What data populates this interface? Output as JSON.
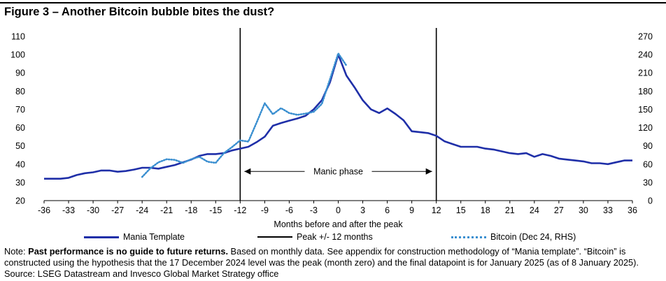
{
  "title": "Figure 3 – Another Bitcoin bubble bites the dust?",
  "chart_data": {
    "type": "line",
    "xlabel": "Months before and after the peak",
    "x_ticks": [
      -36,
      -33,
      -30,
      -27,
      -24,
      -21,
      -18,
      -15,
      -12,
      -9,
      -6,
      -3,
      0,
      3,
      6,
      9,
      12,
      15,
      18,
      21,
      24,
      27,
      30,
      33,
      36
    ],
    "xlim": [
      -36,
      36
    ],
    "ylim_left": [
      20,
      110
    ],
    "yticks_left": [
      20,
      30,
      40,
      50,
      60,
      70,
      80,
      90,
      100,
      110
    ],
    "ylim_right": [
      0,
      270
    ],
    "yticks_right": [
      0,
      30,
      60,
      90,
      120,
      150,
      180,
      210,
      240,
      270
    ],
    "grid": false,
    "series": [
      {
        "name": "Mania Template",
        "axis": "left",
        "color": "#1f2fa8",
        "style": "solid",
        "x": [
          -36,
          -35,
          -34,
          -33,
          -32,
          -31,
          -30,
          -29,
          -28,
          -27,
          -26,
          -25,
          -24,
          -23,
          -22,
          -21,
          -20,
          -19,
          -18,
          -17,
          -16,
          -15,
          -14,
          -13,
          -12,
          -11,
          -10,
          -9,
          -8,
          -7,
          -6,
          -5,
          -4,
          -3,
          -2,
          -1,
          0,
          1,
          2,
          3,
          4,
          5,
          6,
          7,
          8,
          9,
          10,
          11,
          12,
          13,
          14,
          15,
          16,
          17,
          18,
          19,
          20,
          21,
          22,
          23,
          24,
          25,
          26,
          27,
          28,
          29,
          30,
          31,
          32,
          33,
          34,
          35,
          36
        ],
        "y": [
          32,
          32,
          32,
          32.5,
          34,
          35,
          35.5,
          36.5,
          36.5,
          35.8,
          36.2,
          37,
          38,
          38,
          37.5,
          38.5,
          39.5,
          41,
          42.5,
          44.5,
          45.5,
          45.5,
          46,
          47.5,
          48.5,
          49.5,
          52,
          55,
          61,
          62.5,
          63.8,
          65,
          66.5,
          70,
          75,
          85,
          100,
          88.5,
          82,
          75,
          70,
          68,
          70.5,
          67.5,
          64,
          58,
          57.5,
          57,
          55.5,
          52.5,
          51,
          49.5,
          49.5,
          49.5,
          48.5,
          48,
          47,
          46,
          45.5,
          46,
          44,
          45.5,
          44.5,
          43,
          42.5,
          42,
          41.5,
          40.5,
          40.5,
          40,
          41,
          42,
          42
        ]
      },
      {
        "name": "Bitcoin (Dec 24, RHS)",
        "axis": "right",
        "color": "#3a8fd0",
        "style": "dotted",
        "x": [
          -24,
          -23,
          -22,
          -21,
          -20,
          -19,
          -18,
          -17,
          -16,
          -15,
          -14,
          -13,
          -12,
          -11,
          -10,
          -9,
          -8,
          -7,
          -6,
          -5,
          -4,
          -3,
          -2,
          -1,
          0,
          1
        ],
        "y": [
          39,
          53,
          63,
          68,
          67,
          62,
          68,
          72,
          64,
          62,
          78,
          88,
          99,
          97,
          128,
          160,
          142,
          152,
          144,
          141,
          143,
          146,
          159,
          200,
          242,
          222
        ]
      }
    ],
    "reference_lines": {
      "name": "Peak +/- 12 months",
      "x": [
        -12,
        12
      ],
      "color": "#000000"
    },
    "annotation": {
      "text": "Manic phase",
      "x_from": -12,
      "x_to": 12,
      "y": 36
    }
  },
  "legend": {
    "mania": "Mania Template",
    "peak": "Peak +/- 12 months",
    "bitcoin": "Bitcoin (Dec 24, RHS)"
  },
  "note": {
    "prefix": "Note: ",
    "bold": "Past performance is no guide to future returns.",
    "rest": "  Based on monthly data. See appendix for construction methodology of “Mania template”. “Bitcoin” is constructed using the hypothesis that the 17 December 2024 level was the peak (month zero) and the final datapoint is for January 2025 (as of 8 January 2025). Source: LSEG Datastream and Invesco Global Market Strategy office"
  }
}
